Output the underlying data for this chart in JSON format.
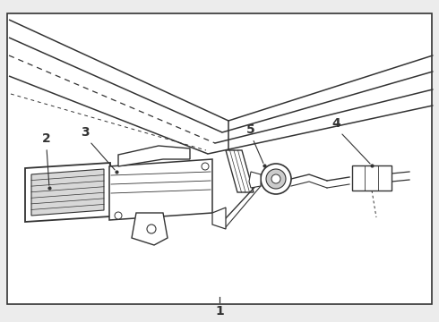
{
  "bg_color": "#ececec",
  "border_color": "#333333",
  "line_color": "#333333",
  "fig_width": 4.9,
  "fig_height": 3.6,
  "dpi": 100,
  "label_1": "1",
  "label_2": "2",
  "label_3": "3",
  "label_4": "4",
  "label_5": "5",
  "label_fontsize": 10,
  "label_fontweight": "bold"
}
